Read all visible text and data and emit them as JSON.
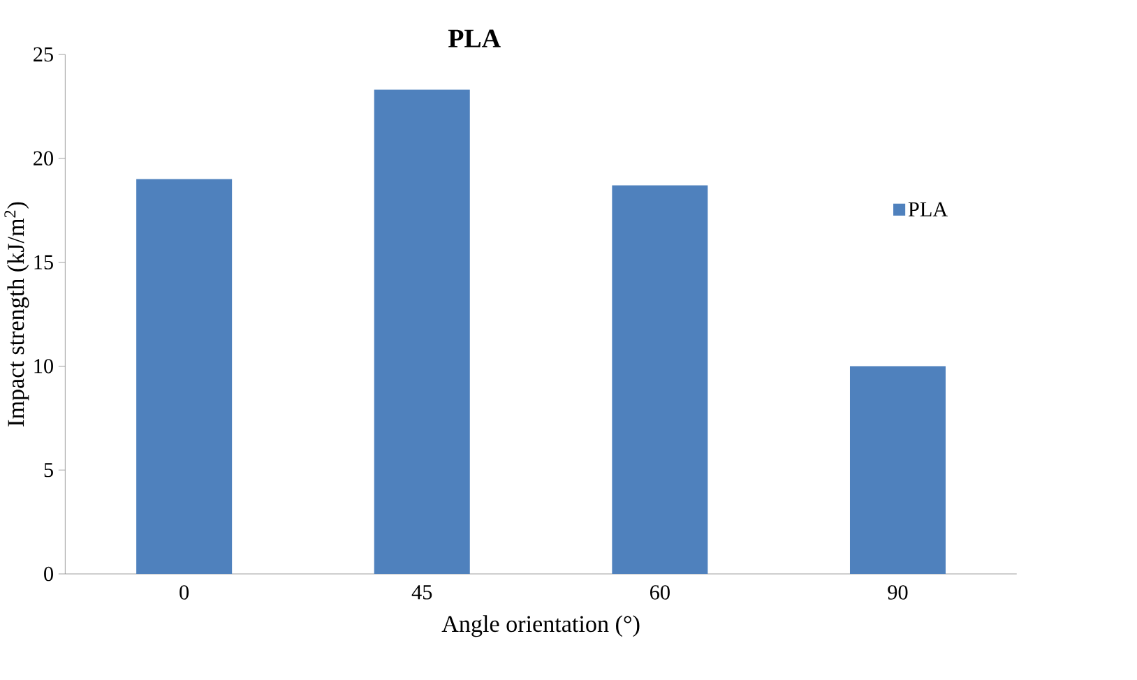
{
  "chart_data": {
    "type": "bar",
    "title": "PLA",
    "xlabel": "Angle orientation (°)",
    "ylabel": "Impact strength (kJ/m$^{2}$)",
    "categories": [
      "0",
      "45",
      "60",
      "90"
    ],
    "series": [
      {
        "name": "PLA",
        "color": "#4f81bd",
        "values": [
          19.0,
          23.3,
          18.7,
          10.0
        ]
      }
    ],
    "ylim": [
      0,
      25
    ],
    "yticks": [
      0,
      5,
      10,
      15,
      20,
      25
    ],
    "grid": false,
    "legend": "right"
  }
}
